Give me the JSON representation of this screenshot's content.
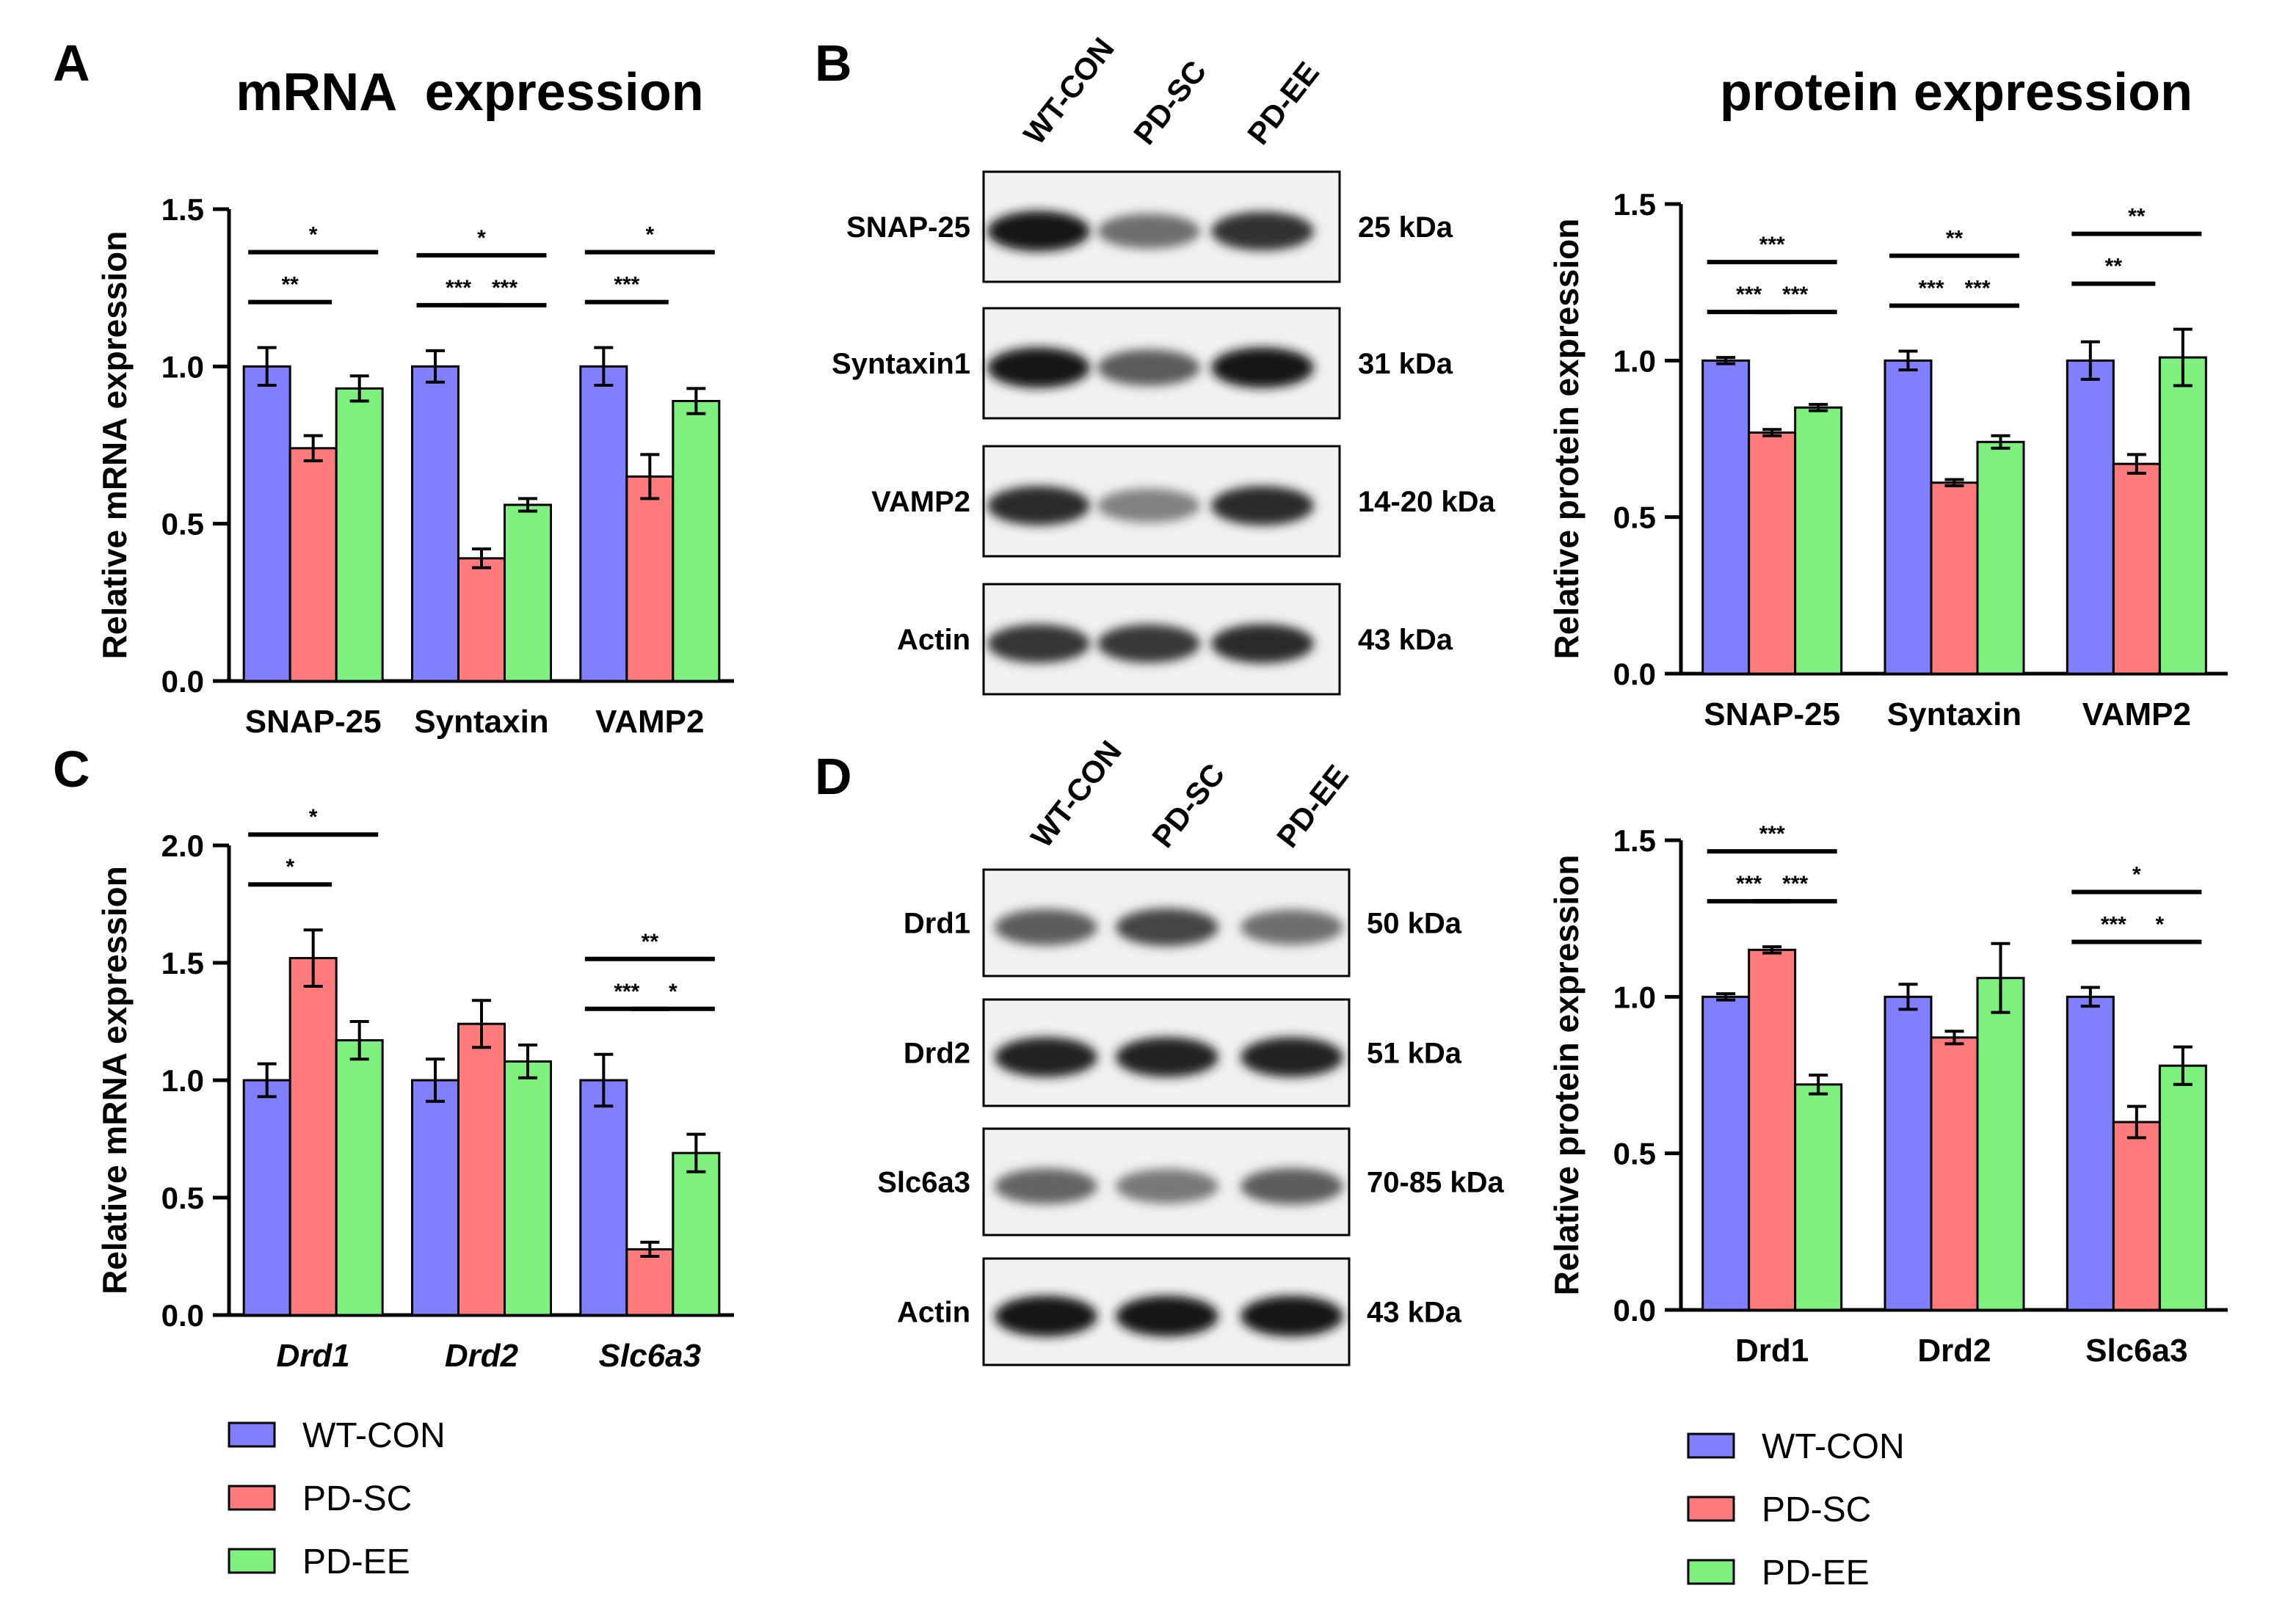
{
  "panel_letters": {
    "A": "A",
    "B": "B",
    "C": "C",
    "D": "D"
  },
  "titles": {
    "mrna": "mRNA  expression",
    "protein": "protein expression"
  },
  "colors": {
    "WT-CON": "#8080ff",
    "PD-SC": "#ff7a7a",
    "PD-EE": "#7ef07e"
  },
  "chart_data": [
    {
      "id": "A",
      "type": "bar",
      "title": "mRNA  expression",
      "ylabel": "Relative mRNA expression",
      "xlabel": "",
      "ylim": [
        0,
        1.5
      ],
      "yticks": [
        "0.0",
        "0.5",
        "1.0",
        "1.5"
      ],
      "categories": [
        "SNAP-25",
        "Syntaxin",
        "VAMP2"
      ],
      "italic_categories": false,
      "series": [
        {
          "name": "WT-CON",
          "values": [
            1.0,
            1.0,
            1.0
          ],
          "errors": [
            0.06,
            0.05,
            0.06
          ]
        },
        {
          "name": "PD-SC",
          "values": [
            0.74,
            0.39,
            0.65
          ],
          "errors": [
            0.04,
            0.03,
            0.07
          ]
        },
        {
          "name": "PD-EE",
          "values": [
            0.93,
            0.56,
            0.89
          ],
          "errors": [
            0.04,
            0.02,
            0.04
          ]
        }
      ],
      "significance": [
        {
          "group": 0,
          "from": 0,
          "to": 1,
          "label": "**",
          "tier": 0
        },
        {
          "group": 0,
          "from": 0,
          "to": 2,
          "label": "*",
          "tier": 1
        },
        {
          "group": 1,
          "from": 0,
          "to": 1,
          "label": "***",
          "tier": 0
        },
        {
          "group": 1,
          "from": 1,
          "to": 2,
          "label": "***",
          "tier": 0
        },
        {
          "group": 1,
          "from": 0,
          "to": 2,
          "label": "*",
          "tier": 1
        },
        {
          "group": 2,
          "from": 0,
          "to": 1,
          "label": "***",
          "tier": 0
        },
        {
          "group": 2,
          "from": 0,
          "to": 2,
          "label": "*",
          "tier": 1
        }
      ]
    },
    {
      "id": "B",
      "type": "bar",
      "title": "protein expression",
      "ylabel": "Relative protein expression",
      "xlabel": "",
      "ylim": [
        0,
        1.5
      ],
      "yticks": [
        "0.0",
        "0.5",
        "1.0",
        "1.5"
      ],
      "categories": [
        "SNAP-25",
        "Syntaxin",
        "VAMP2"
      ],
      "italic_categories": false,
      "series": [
        {
          "name": "WT-CON",
          "values": [
            1.0,
            1.0,
            1.0
          ],
          "errors": [
            0.01,
            0.03,
            0.06
          ]
        },
        {
          "name": "PD-SC",
          "values": [
            0.77,
            0.61,
            0.67
          ],
          "errors": [
            0.01,
            0.01,
            0.03
          ]
        },
        {
          "name": "PD-EE",
          "values": [
            0.85,
            0.74,
            1.01
          ],
          "errors": [
            0.01,
            0.02,
            0.09
          ]
        }
      ],
      "significance": [
        {
          "group": 0,
          "from": 0,
          "to": 1,
          "label": "***",
          "tier": 0
        },
        {
          "group": 0,
          "from": 1,
          "to": 2,
          "label": "***",
          "tier": 0
        },
        {
          "group": 0,
          "from": 0,
          "to": 2,
          "label": "***",
          "tier": 1
        },
        {
          "group": 1,
          "from": 0,
          "to": 1,
          "label": "***",
          "tier": 0
        },
        {
          "group": 1,
          "from": 1,
          "to": 2,
          "label": "***",
          "tier": 0
        },
        {
          "group": 1,
          "from": 0,
          "to": 2,
          "label": "**",
          "tier": 1
        },
        {
          "group": 2,
          "from": 0,
          "to": 1,
          "label": "**",
          "tier": 0
        },
        {
          "group": 2,
          "from": 0,
          "to": 2,
          "label": "**",
          "tier": 1
        }
      ]
    },
    {
      "id": "C",
      "type": "bar",
      "title": "",
      "ylabel": "Relative mRNA expression",
      "xlabel": "",
      "ylim": [
        0,
        2.0
      ],
      "yticks": [
        "0.0",
        "0.5",
        "1.0",
        "1.5",
        "2.0"
      ],
      "categories": [
        "Drd1",
        "Drd2",
        "Slc6a3"
      ],
      "italic_categories": true,
      "series": [
        {
          "name": "WT-CON",
          "values": [
            1.0,
            1.0,
            1.0
          ],
          "errors": [
            0.07,
            0.09,
            0.11
          ]
        },
        {
          "name": "PD-SC",
          "values": [
            1.52,
            1.24,
            0.28
          ],
          "errors": [
            0.12,
            0.1,
            0.03
          ]
        },
        {
          "name": "PD-EE",
          "values": [
            1.17,
            1.08,
            0.69
          ],
          "errors": [
            0.08,
            0.07,
            0.08
          ]
        }
      ],
      "significance": [
        {
          "group": 0,
          "from": 0,
          "to": 1,
          "label": "*",
          "tier": 0
        },
        {
          "group": 0,
          "from": 0,
          "to": 2,
          "label": "*",
          "tier": 1
        },
        {
          "group": 2,
          "from": 0,
          "to": 1,
          "label": "***",
          "tier": 0
        },
        {
          "group": 2,
          "from": 1,
          "to": 2,
          "label": "*",
          "tier": 0
        },
        {
          "group": 2,
          "from": 0,
          "to": 2,
          "label": "**",
          "tier": 1
        }
      ]
    },
    {
      "id": "D",
      "type": "bar",
      "title": "",
      "ylabel": "Relative protein expression",
      "xlabel": "",
      "ylim": [
        0,
        1.5
      ],
      "yticks": [
        "0.0",
        "0.5",
        "1.0",
        "1.5"
      ],
      "categories": [
        "Drd1",
        "Drd2",
        "Slc6a3"
      ],
      "italic_categories": false,
      "series": [
        {
          "name": "WT-CON",
          "values": [
            1.0,
            1.0,
            1.0
          ],
          "errors": [
            0.01,
            0.04,
            0.03
          ]
        },
        {
          "name": "PD-SC",
          "values": [
            1.15,
            0.87,
            0.6
          ],
          "errors": [
            0.01,
            0.02,
            0.05
          ]
        },
        {
          "name": "PD-EE",
          "values": [
            0.72,
            1.06,
            0.78
          ],
          "errors": [
            0.03,
            0.11,
            0.06
          ]
        }
      ],
      "significance": [
        {
          "group": 0,
          "from": 0,
          "to": 1,
          "label": "***",
          "tier": 0
        },
        {
          "group": 0,
          "from": 1,
          "to": 2,
          "label": "***",
          "tier": 0
        },
        {
          "group": 0,
          "from": 0,
          "to": 2,
          "label": "***",
          "tier": 1
        },
        {
          "group": 2,
          "from": 0,
          "to": 1,
          "label": "***",
          "tier": 0
        },
        {
          "group": 2,
          "from": 1,
          "to": 2,
          "label": "*",
          "tier": 0
        },
        {
          "group": 2,
          "from": 0,
          "to": 2,
          "label": "*",
          "tier": 1
        }
      ]
    }
  ],
  "blots": [
    {
      "id": "B",
      "lanes": [
        "WT-CON",
        "PD-SC",
        "PD-EE"
      ],
      "rows": [
        {
          "label": "SNAP-25",
          "kda": "25 kDa",
          "intensity": [
            0.95,
            0.5,
            0.82
          ]
        },
        {
          "label": "Syntaxin1",
          "kda": "31 kDa",
          "intensity": [
            0.95,
            0.6,
            0.95
          ]
        },
        {
          "label": "VAMP2",
          "kda": "14-20 kDa",
          "intensity": [
            0.85,
            0.4,
            0.85
          ]
        },
        {
          "label": "Actin",
          "kda": "43 kDa",
          "intensity": [
            0.8,
            0.78,
            0.85
          ]
        }
      ]
    },
    {
      "id": "D",
      "lanes": [
        "WT-CON",
        "PD-SC",
        "PD-EE"
      ],
      "rows": [
        {
          "label": "Drd1",
          "kda": "50 kDa",
          "intensity": [
            0.6,
            0.72,
            0.5
          ]
        },
        {
          "label": "Drd2",
          "kda": "51 kDa",
          "intensity": [
            0.9,
            0.9,
            0.9
          ]
        },
        {
          "label": "Slc6a3",
          "kda": "70-85 kDa",
          "intensity": [
            0.55,
            0.45,
            0.6
          ]
        },
        {
          "label": "Actin",
          "kda": "43 kDa",
          "intensity": [
            0.97,
            0.97,
            0.97
          ]
        }
      ]
    }
  ],
  "legends": [
    {
      "id": "left",
      "items": [
        "WT-CON",
        "PD-SC",
        "PD-EE"
      ]
    },
    {
      "id": "right",
      "items": [
        "WT-CON",
        "PD-SC",
        "PD-EE"
      ]
    }
  ]
}
